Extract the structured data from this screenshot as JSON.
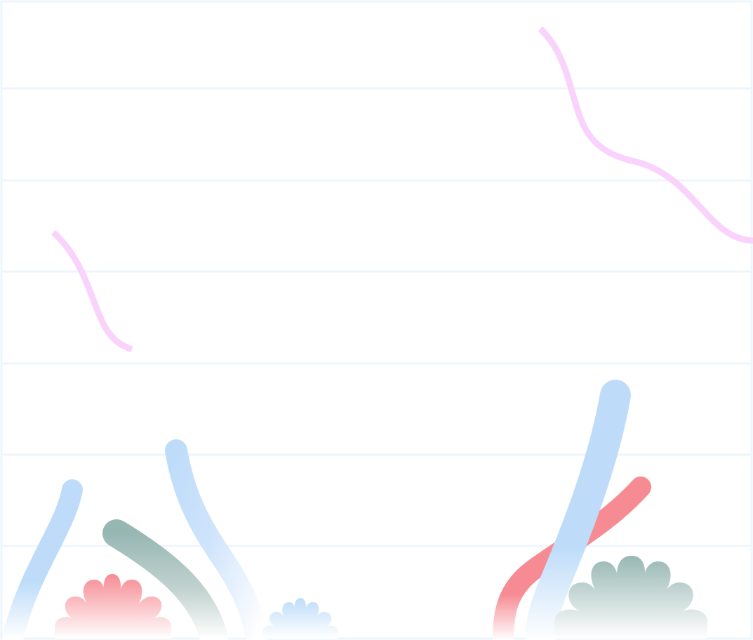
{
  "scene": {
    "background_color": "#ffffff",
    "line_color": "#eef6fc",
    "palette": {
      "squiggle": "#f9d3fb",
      "blue": "#bedcf9",
      "green": "#97b7b3",
      "pink": "#f68b93",
      "fade_to": "#ffffff"
    },
    "elements": [
      "pink-squiggle-left",
      "pink-squiggle-right",
      "blue-stalk-far-left",
      "green-stalk-left",
      "blue-stalk-center-left",
      "pink-coral-left",
      "blue-coral-small",
      "pink-stalk-right",
      "blue-stalk-right",
      "green-coral-right"
    ]
  }
}
